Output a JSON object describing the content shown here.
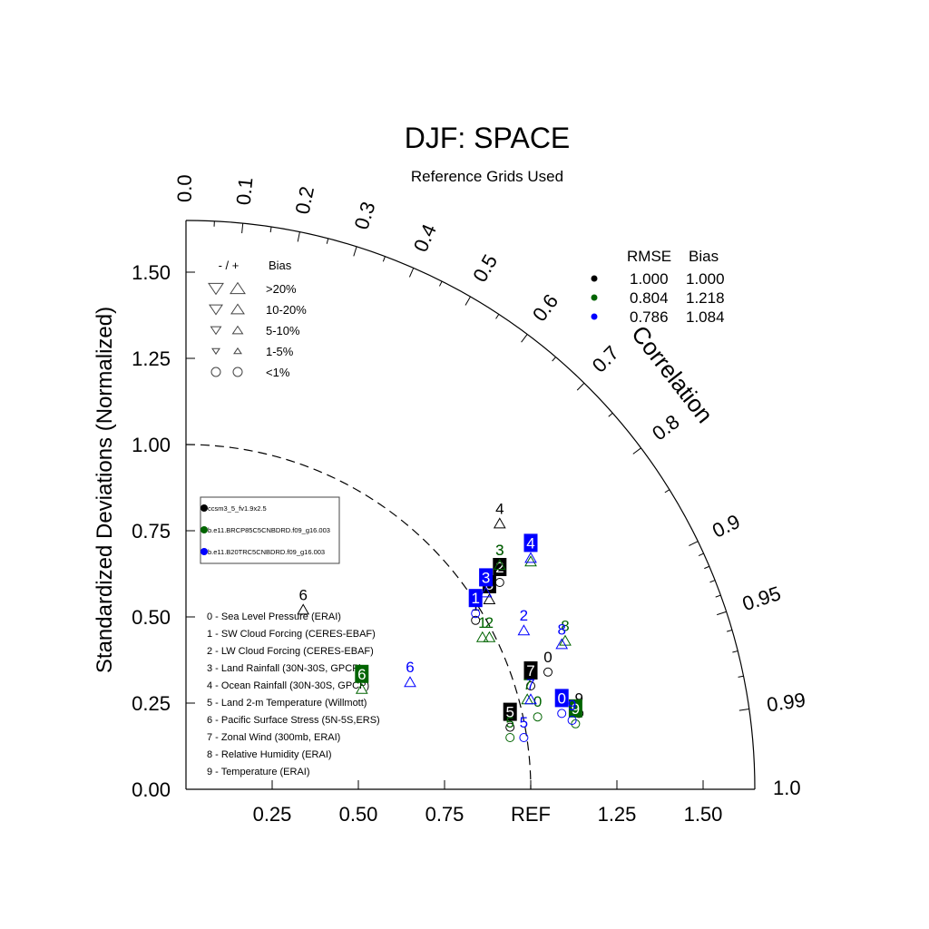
{
  "chart_data": {
    "type": "scatter",
    "subtype": "taylor-diagram",
    "title": "DJF: SPACE",
    "subtitle": "Reference Grids Used",
    "ylabel": "Standardized Deviations (Normalized)",
    "arc_label": "Correlation",
    "ref_label": "REF",
    "radial_range": [
      0,
      1.65
    ],
    "y_ticks": [
      "0.00",
      "0.25",
      "0.50",
      "0.75",
      "1.00",
      "1.25",
      "1.50"
    ],
    "x_ticks": [
      "0.25",
      "0.50",
      "0.75",
      "REF",
      "1.25",
      "1.50"
    ],
    "correlation_ticks": [
      "0.0",
      "0.1",
      "0.2",
      "0.3",
      "0.4",
      "0.5",
      "0.6",
      "0.7",
      "0.8",
      "0.9",
      "0.95",
      "0.99",
      "1.0"
    ],
    "bias_legend": {
      "header_signs": "- / +",
      "header_bias": "Bias",
      "rows": [
        ">20%",
        "10-20%",
        "5-10%",
        "1-5%",
        "<1%"
      ]
    },
    "stats_table": {
      "header_rmse": "RMSE",
      "header_bias": "Bias",
      "rows": [
        {
          "color": "#000000",
          "rmse": "1.000",
          "bias": "1.000"
        },
        {
          "color": "#006400",
          "rmse": "0.804",
          "bias": "1.218"
        },
        {
          "color": "#0000ff",
          "rmse": "0.786",
          "bias": "1.084"
        }
      ]
    },
    "cases": [
      {
        "name": "ccsm3_5_fv1.9x2.5",
        "color": "#000000"
      },
      {
        "name": "b.e11.BRCP85C5CNBDRD.f09_g16.003",
        "color": "#006400"
      },
      {
        "name": "b.e11.B20TRC5CNBDRD.f09_g16.003",
        "color": "#0000ff"
      }
    ],
    "variables": [
      "0 - Sea Level Pressure (ERAI)",
      "1 - SW Cloud Forcing (CERES-EBAF)",
      "2 - LW Cloud Forcing (CERES-EBAF)",
      "3 - Land Rainfall (30N-30S, GPCP)",
      "4 - Ocean Rainfall (30N-30S, GPCP)",
      "5 - Land 2-m Temperature (Willmott)",
      "6 - Pacific Surface Stress (5N-5S,ERS)",
      "7 - Zonal Wind (300mb, ERAI)",
      "8 - Relative Humidity (ERAI)",
      "9 - Temperature (ERAI)"
    ],
    "series": [
      {
        "name": "ccsm3_5_fv1.9x2.5",
        "color": "#000000",
        "points": [
          {
            "label": "0",
            "x": 1.05,
            "y": 0.34,
            "marker": "circle",
            "boxed": false
          },
          {
            "label": "1",
            "x": 0.84,
            "y": 0.49,
            "marker": "circle",
            "boxed": false
          },
          {
            "label": "2",
            "x": 0.91,
            "y": 0.6,
            "marker": "circle",
            "boxed": true
          },
          {
            "label": "3",
            "x": 0.91,
            "y": 0.65,
            "marker": "up",
            "boxed": false
          },
          {
            "label": "4",
            "x": 0.91,
            "y": 0.77,
            "marker": "up",
            "boxed": false
          },
          {
            "label": "5",
            "x": 0.94,
            "y": 0.18,
            "marker": "circle",
            "boxed": true
          },
          {
            "label": "6",
            "x": 0.34,
            "y": 0.52,
            "marker": "up",
            "boxed": false
          },
          {
            "label": "7",
            "x": 1.0,
            "y": 0.3,
            "marker": "circle",
            "boxed": true
          },
          {
            "label": "8",
            "x": 0.88,
            "y": 0.55,
            "marker": "up",
            "boxed": true
          },
          {
            "label": "9",
            "x": 1.14,
            "y": 0.22,
            "marker": "circle",
            "boxed": false
          }
        ]
      },
      {
        "name": "b.e11.BRCP85C5CNBDRD.f09_g16.003",
        "color": "#006400",
        "points": [
          {
            "label": "0",
            "x": 1.02,
            "y": 0.21,
            "marker": "circle",
            "boxed": false
          },
          {
            "label": "1",
            "x": 0.86,
            "y": 0.44,
            "marker": "up",
            "boxed": false
          },
          {
            "label": "2",
            "x": 0.88,
            "y": 0.44,
            "marker": "up",
            "boxed": false
          },
          {
            "label": "3",
            "x": 0.91,
            "y": 0.65,
            "marker": "up",
            "boxed": false
          },
          {
            "label": "4",
            "x": 1.0,
            "y": 0.66,
            "marker": "up",
            "boxed": false
          },
          {
            "label": "5",
            "x": 0.94,
            "y": 0.15,
            "marker": "circle",
            "boxed": false
          },
          {
            "label": "6",
            "x": 0.51,
            "y": 0.29,
            "marker": "up",
            "boxed": true
          },
          {
            "label": "7",
            "x": 0.99,
            "y": 0.26,
            "marker": "up",
            "boxed": false
          },
          {
            "label": "8",
            "x": 1.1,
            "y": 0.43,
            "marker": "up",
            "boxed": false
          },
          {
            "label": "9",
            "x": 1.13,
            "y": 0.19,
            "marker": "circle",
            "boxed": true
          }
        ]
      },
      {
        "name": "b.e11.B20TRC5CNBDRD.f09_g16.003",
        "color": "#0000ff",
        "points": [
          {
            "label": "0",
            "x": 1.09,
            "y": 0.22,
            "marker": "circle",
            "boxed": true
          },
          {
            "label": "1",
            "x": 0.84,
            "y": 0.51,
            "marker": "circle",
            "boxed": true
          },
          {
            "label": "2",
            "x": 0.98,
            "y": 0.46,
            "marker": "up",
            "boxed": false
          },
          {
            "label": "3",
            "x": 0.87,
            "y": 0.57,
            "marker": "up",
            "boxed": true
          },
          {
            "label": "4",
            "x": 1.0,
            "y": 0.67,
            "marker": "up",
            "boxed": true
          },
          {
            "label": "5",
            "x": 0.98,
            "y": 0.15,
            "marker": "circle",
            "boxed": false
          },
          {
            "label": "6",
            "x": 0.65,
            "y": 0.31,
            "marker": "up",
            "boxed": false
          },
          {
            "label": "7",
            "x": 1.0,
            "y": 0.26,
            "marker": "up",
            "boxed": false
          },
          {
            "label": "8",
            "x": 1.09,
            "y": 0.42,
            "marker": "up",
            "boxed": false
          },
          {
            "label": "9",
            "x": 1.12,
            "y": 0.2,
            "marker": "circle",
            "boxed": false
          }
        ]
      }
    ]
  }
}
